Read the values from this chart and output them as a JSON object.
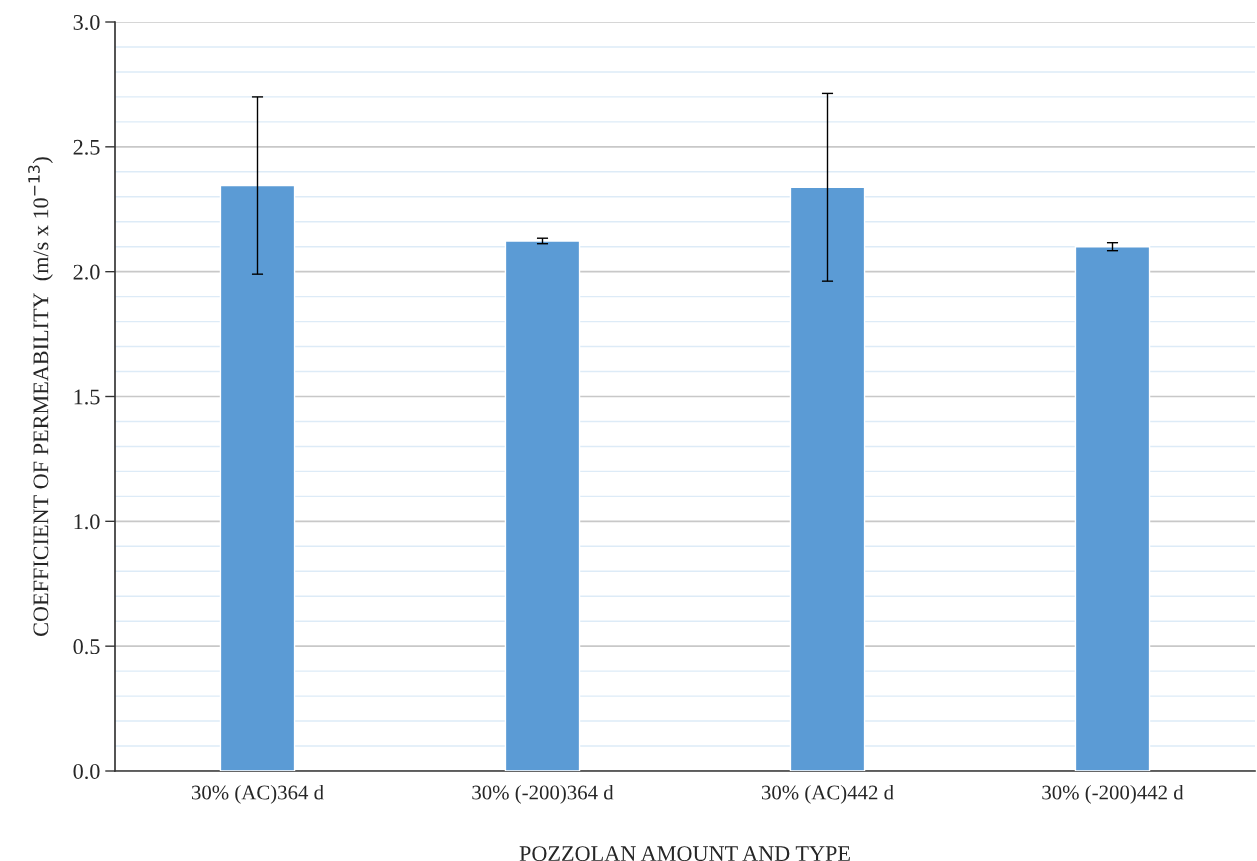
{
  "chart_data": {
    "type": "bar",
    "xlabel": "POZZOLAN AMOUNT AND TYPE",
    "ylabel": "COEFFICIENT OF PERMEABILITY  (m/s x 10$^{−13}$)",
    "categories": [
      "30% (AC)364 d",
      "30% (-200)364 d",
      "30% (AC)442 d",
      "30% (-200)442 d"
    ],
    "series": [
      {
        "color": "#5b9bd5",
        "values": [
          2.345,
          2.123,
          2.338,
          2.1
        ],
        "errors": [
          0.355,
          0.011,
          0.376,
          0.016
        ]
      }
    ],
    "ylim": [
      0,
      3.0
    ],
    "yticks": [
      {
        "value": 0,
        "label": "0.0"
      },
      {
        "value": 0.5,
        "label": "0.5"
      },
      {
        "value": 1,
        "label": "1.0"
      },
      {
        "value": 1.5,
        "label": "1.5"
      },
      {
        "value": 2,
        "label": "2.0"
      },
      {
        "value": 2.5,
        "label": "2.5"
      },
      {
        "value": 3,
        "label": "3.0"
      }
    ],
    "grid": "y"
  }
}
